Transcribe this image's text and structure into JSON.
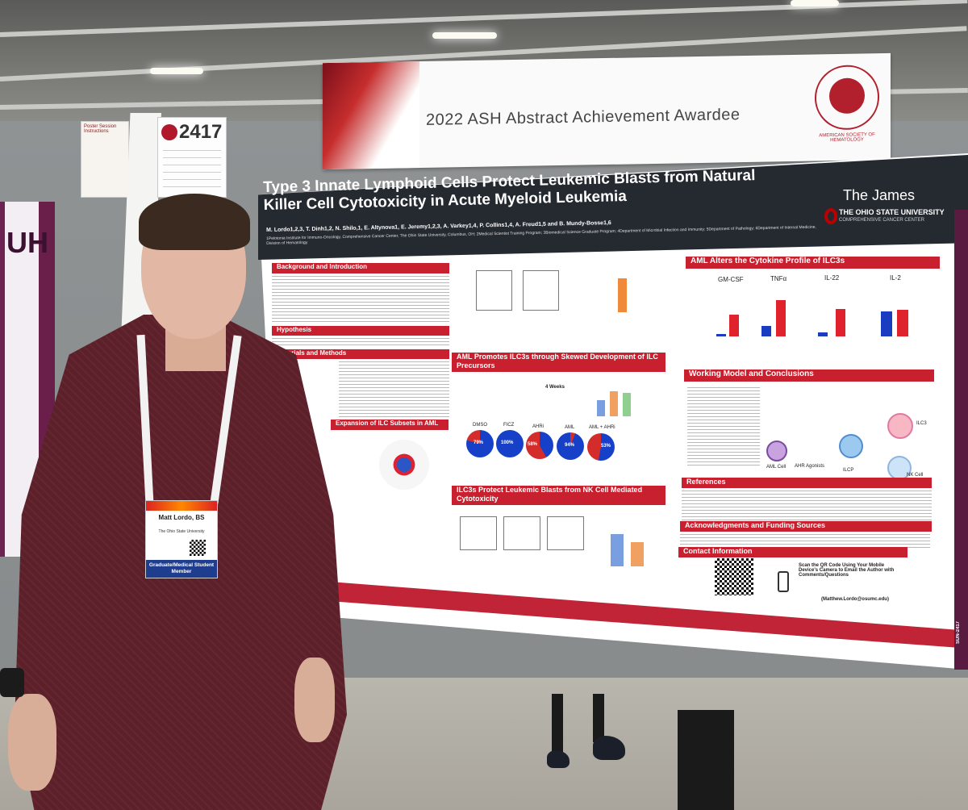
{
  "booth_number": "2417",
  "left_poster_text": "UH",
  "small_sign": "Poster Session Instructions",
  "banner": {
    "title": "2022 ASH Abstract Achievement Awardee",
    "society": "AMERICAN SOCIETY OF HEMATOLOGY"
  },
  "poster": {
    "title": "Type 3 Innate Lymphoid Cells Protect Leukemic Blasts from Natural Killer Cell Cytotoxicity in Acute Myeloid Leukemia",
    "authors": "M. Lordo1,2,3, T. Dinh1,2, N. Shilo,1, E. Altynova1, E. Jeremy1,2,3, A. Varkey1,4, P. Collins1,4, A. Freud1,5 and B. Mundy-Bosse1,6",
    "affiliations": "1Pelotonia Institute for Immuno-Oncology, Comprehensive Cancer Center, The Ohio State University, Columbus, OH; 2Medical Scientist Training Program; 3Biomedical Science Graduate Program; 4Department of Microbial Infection and Immunity; 5Department of Pathology; 6Department of Internal Medicine, Division of Hematology",
    "institution_brand": "The James",
    "institution": "THE OHIO STATE UNIVERSITY",
    "institution_sub": "COMPREHENSIVE CANCER CENTER",
    "sections": {
      "background": "Background and Introduction",
      "hypothesis": "Hypothesis",
      "methods": "Materials and Methods",
      "expansion": "Expansion of ILC Subsets in AML",
      "promotes": "AML Promotes ILC3s through Skewed Development of ILC Precursors",
      "protect": "ILC3s Protect Leukemic Blasts from NK Cell Mediated Cytotoxicity",
      "cytokine": "AML Alters the Cytokine Profile of ILC3s",
      "working_model": "Working Model and Conclusions",
      "references": "References",
      "acknowledgments": "Acknowledgments and Funding Sources",
      "contact": "Contact Information"
    },
    "cytokine_labels": [
      "GM-CSF",
      "TNFα",
      "IL-22",
      "IL-2"
    ],
    "pie_labels": [
      "DMSO",
      "FICZ",
      "AHRi",
      "AML",
      "AML + AHRi"
    ],
    "pie_values": [
      "79%",
      "100%",
      "58%",
      "94%",
      "53%"
    ],
    "four_weeks": "4 Weeks",
    "contact_text": "Scan the QR Code Using Your Mobile Device's Camera to Email the Author with Comments/Questions",
    "contact_email": "(Matthew.Lordo@osumc.edu)",
    "model_labels": [
      "AML Cell",
      "ILCP",
      "NK Cell",
      "ILC3",
      "AHR Agonists"
    ],
    "side_strip": "SUN-2417"
  },
  "badge": {
    "name": "Matt Lordo, BS",
    "org": "The Ohio State University",
    "category": "Graduate/Medical Student Member"
  },
  "colors": {
    "ash_red": "#c8202e",
    "header_dark": "#252a31",
    "shirt": "#5b2029"
  }
}
